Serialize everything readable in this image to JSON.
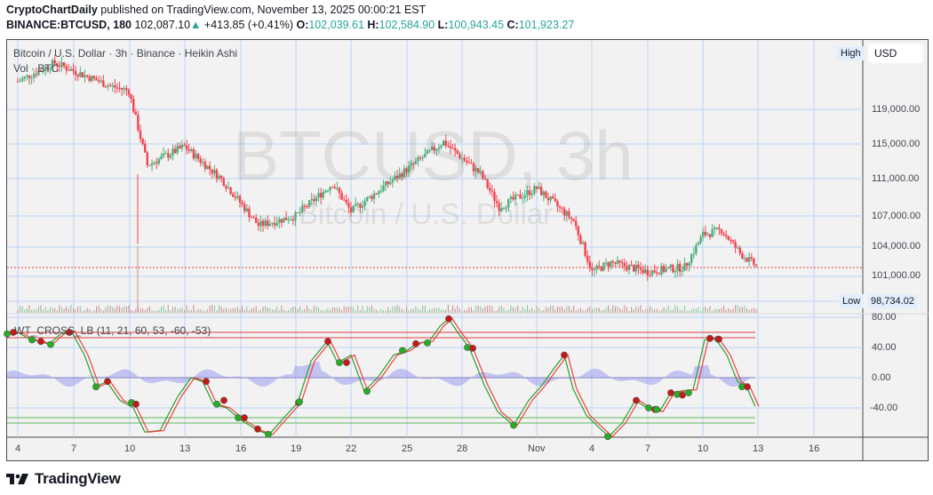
{
  "header": {
    "author": "CryptoChartDaily",
    "published_text": "published on TradingView.com, November 13, 2025 00:00:21 EST",
    "symbol": "BINANCE:BTCUSD, 180",
    "last_price": "102,087.10",
    "change_arrow": "▲",
    "change": "+413.85 (+0.41%)",
    "ohlc": {
      "o_label": "O:",
      "o": "102,039.61",
      "h_label": "H:",
      "h": "102,584.90",
      "l_label": "L:",
      "l": "100,943.45",
      "c_label": "C:",
      "c": "101,923.27"
    }
  },
  "chart": {
    "legend_main": "Bitcoin / U.S. Dollar · 3h · Binance · Heikin Ashi",
    "legend_vol": "Vol · BTC",
    "watermark_symbol": "BTCUSD, 3h",
    "watermark_name": "Bitcoin / U.S. Dollar",
    "currency_button": "USD",
    "high_badge": "High",
    "low_badge": "Low",
    "low_value": "98,734.02",
    "price_axis": [
      "119,000.00",
      "115,000.00",
      "111,000.00",
      "107,000.00",
      "104,000.00",
      "101,000.00"
    ],
    "indicator_legend": "WT_CROSS_LB (11, 21, 60, 53, -60, -53)",
    "indicator_axis": [
      "80.00",
      "40.00",
      "0.00",
      "-40.00"
    ],
    "time_axis": [
      "4",
      "7",
      "10",
      "13",
      "16",
      "19",
      "22",
      "25",
      "28",
      "Nov",
      "4",
      "7",
      "10",
      "13",
      "16"
    ]
  },
  "footer": {
    "brand": "TradingView"
  },
  "colors": {
    "up_candle": "#4caf7d",
    "down_candle": "#f5424f",
    "grid": "#b8d4f5",
    "wt1": "#2e9e2e",
    "wt2": "#f04040",
    "wt_area": "#9c9cf0",
    "overbought": "#e04040",
    "oversold": "#5cb85c",
    "price_line": "#e04040"
  },
  "chart_data": {
    "type": "candlestick",
    "title": "Bitcoin / U.S. Dollar · 3h · Binance · Heikin Ashi",
    "symbol": "BINANCE:BTCUSD",
    "interval": "3h",
    "style": "Heikin Ashi",
    "last": {
      "open": 102039.61,
      "high": 102584.9,
      "low": 100943.45,
      "close": 101923.27,
      "price": 102087.1,
      "change": 413.85,
      "change_pct": 0.41
    },
    "x_ticks": [
      "4",
      "7",
      "10",
      "13",
      "16",
      "19",
      "22",
      "25",
      "28",
      "Nov",
      "4",
      "7",
      "10",
      "13",
      "16"
    ],
    "y_ticks": [
      119000,
      115000,
      111000,
      107000,
      104000,
      101000
    ],
    "ylim": [
      97000,
      124500
    ],
    "low_marker": 98734.02,
    "approx_close_path": [
      {
        "date": "Oct 4",
        "close": 122000
      },
      {
        "date": "Oct 6",
        "close": 124000
      },
      {
        "date": "Oct 9",
        "close": 121500
      },
      {
        "date": "Oct 10",
        "close": 121000
      },
      {
        "date": "Oct 11",
        "close": 113000
      },
      {
        "date": "Oct 13",
        "close": 115000
      },
      {
        "date": "Oct 15",
        "close": 111500
      },
      {
        "date": "Oct 17",
        "close": 106500
      },
      {
        "date": "Oct 19",
        "close": 107500
      },
      {
        "date": "Oct 21",
        "close": 111000
      },
      {
        "date": "Oct 22",
        "close": 108000
      },
      {
        "date": "Oct 24",
        "close": 111000
      },
      {
        "date": "Oct 26",
        "close": 114000
      },
      {
        "date": "Oct 27",
        "close": 115500
      },
      {
        "date": "Oct 29",
        "close": 112000
      },
      {
        "date": "Oct 30",
        "close": 108500
      },
      {
        "date": "Nov 1",
        "close": 110500
      },
      {
        "date": "Nov 3",
        "close": 107000
      },
      {
        "date": "Nov 4",
        "close": 101500
      },
      {
        "date": "Nov 5",
        "close": 102500
      },
      {
        "date": "Nov 7",
        "close": 101500
      },
      {
        "date": "Nov 9",
        "close": 102000
      },
      {
        "date": "Nov 10",
        "close": 105500
      },
      {
        "date": "Nov 11",
        "close": 106000
      },
      {
        "date": "Nov 12",
        "close": 103500
      },
      {
        "date": "Nov 13",
        "close": 101923
      }
    ],
    "indicator": {
      "name": "WT_CROSS_LB",
      "params": [
        11,
        21,
        60,
        53,
        -60,
        -53
      ],
      "y_ticks": [
        80,
        40,
        0,
        -40
      ],
      "overbought_levels": [
        60,
        53
      ],
      "oversold_levels": [
        -60,
        -53
      ]
    },
    "volume": {
      "label": "Vol · BTC",
      "spike_date": "Oct 10"
    }
  }
}
